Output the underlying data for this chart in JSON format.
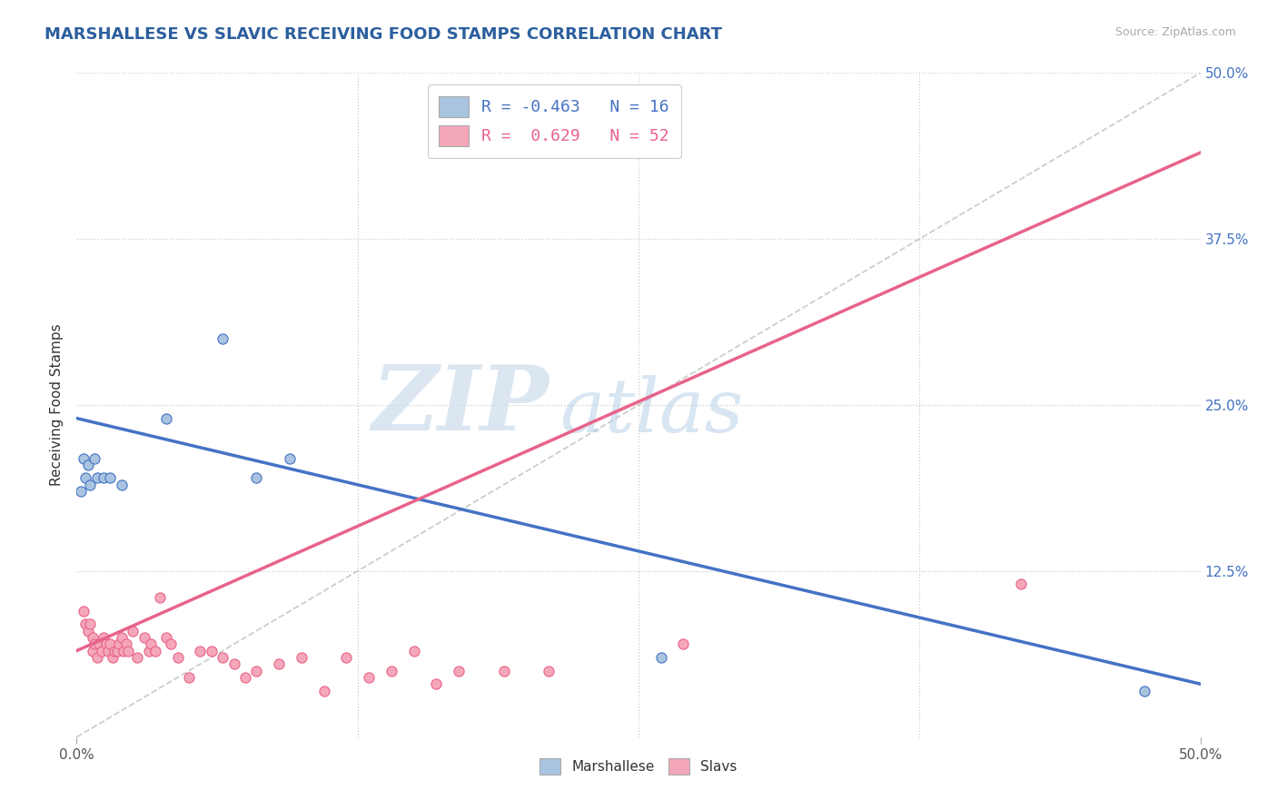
{
  "title": "MARSHALLESE VS SLAVIC RECEIVING FOOD STAMPS CORRELATION CHART",
  "source": "Source: ZipAtlas.com",
  "ylabel": "Receiving Food Stamps",
  "xlim": [
    0.0,
    0.5
  ],
  "ylim": [
    0.0,
    0.5
  ],
  "yticks_right": [
    0.125,
    0.25,
    0.375,
    0.5
  ],
  "yticklabels_right": [
    "12.5%",
    "25.0%",
    "37.5%",
    "50.0%"
  ],
  "grid_color": "#cccccc",
  "background_color": "#ffffff",
  "title_color": "#2c5f9e",
  "source_color": "#aaaaaa",
  "marshallese_x": [
    0.002,
    0.003,
    0.004,
    0.005,
    0.006,
    0.008,
    0.009,
    0.012,
    0.015,
    0.02,
    0.04,
    0.065,
    0.08,
    0.095,
    0.26,
    0.475
  ],
  "marshallese_y": [
    0.185,
    0.21,
    0.195,
    0.205,
    0.19,
    0.21,
    0.195,
    0.195,
    0.195,
    0.19,
    0.24,
    0.3,
    0.195,
    0.21,
    0.06,
    0.035
  ],
  "slavs_x": [
    0.003,
    0.004,
    0.005,
    0.006,
    0.007,
    0.007,
    0.008,
    0.009,
    0.01,
    0.011,
    0.012,
    0.013,
    0.014,
    0.015,
    0.016,
    0.017,
    0.018,
    0.019,
    0.02,
    0.021,
    0.022,
    0.023,
    0.025,
    0.027,
    0.03,
    0.032,
    0.033,
    0.035,
    0.037,
    0.04,
    0.042,
    0.045,
    0.05,
    0.055,
    0.06,
    0.065,
    0.07,
    0.075,
    0.08,
    0.09,
    0.1,
    0.11,
    0.12,
    0.13,
    0.14,
    0.15,
    0.16,
    0.17,
    0.19,
    0.21,
    0.27,
    0.42
  ],
  "slavs_y": [
    0.095,
    0.085,
    0.08,
    0.085,
    0.075,
    0.065,
    0.07,
    0.06,
    0.07,
    0.065,
    0.075,
    0.07,
    0.065,
    0.07,
    0.06,
    0.065,
    0.065,
    0.07,
    0.075,
    0.065,
    0.07,
    0.065,
    0.08,
    0.06,
    0.075,
    0.065,
    0.07,
    0.065,
    0.105,
    0.075,
    0.07,
    0.06,
    0.045,
    0.065,
    0.065,
    0.06,
    0.055,
    0.045,
    0.05,
    0.055,
    0.06,
    0.035,
    0.06,
    0.045,
    0.05,
    0.065,
    0.04,
    0.05,
    0.05,
    0.05,
    0.07,
    0.115
  ],
  "marshallese_color": "#a8c4e0",
  "slavs_color": "#f4a7b9",
  "marshallese_line_color": "#4472c4",
  "slavs_line_color": "#e8638a",
  "blue_line_x0": 0.0,
  "blue_line_y0": 0.24,
  "blue_line_x1": 0.5,
  "blue_line_y1": 0.04,
  "pink_line_x0": 0.0,
  "pink_line_y0": 0.065,
  "pink_line_x1": 0.5,
  "pink_line_y1": 0.44,
  "diag_line_x0": 0.0,
  "diag_line_y0": 0.0,
  "diag_line_x1": 0.5,
  "diag_line_y1": 0.5,
  "R_marshallese": -0.463,
  "N_marshallese": 16,
  "R_slavs": 0.629,
  "N_slavs": 52,
  "watermark_zip": "ZIP",
  "watermark_atlas": "atlas",
  "title_fontsize": 13,
  "axis_label_fontsize": 11
}
